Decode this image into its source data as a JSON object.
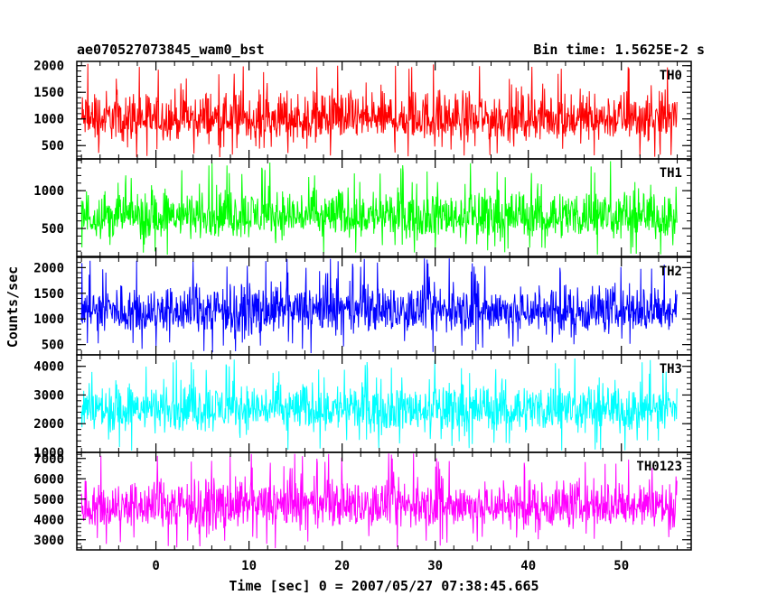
{
  "header": {
    "title": "ae070527073845_wam0_bst",
    "bin_time": "Bin time: 1.5625E-2 s"
  },
  "chart_data": {
    "type": "line",
    "xlabel": "Time [sec] 0 = 2007/05/27 07:38:45.665",
    "ylabel": "Counts/sec",
    "xlim": [
      -8.5,
      57.5
    ],
    "x_ticks": [
      "0",
      "10",
      "20",
      "30",
      "40",
      "50"
    ],
    "x_tick_values": [
      0,
      10,
      20,
      30,
      40,
      50
    ],
    "data_x_range": [
      -8,
      56
    ],
    "series": [
      {
        "name": "TH0",
        "color": "#ff0000",
        "ylim": [
          250,
          2080
        ],
        "y_ticks": [
          "500",
          "1000",
          "1500",
          "2000"
        ],
        "y_tick_values": [
          500,
          1000,
          1500,
          2000
        ],
        "baseline": 980,
        "low": 280,
        "high": 2080
      },
      {
        "name": "TH1",
        "color": "#00ff00",
        "ylim": [
          130,
          1420
        ],
        "y_ticks": [
          "500",
          "1000"
        ],
        "y_tick_values": [
          500,
          1000
        ],
        "baseline": 650,
        "low": 150,
        "high": 1400
      },
      {
        "name": "TH2",
        "color": "#0000ff",
        "ylim": [
          300,
          2200
        ],
        "y_ticks": [
          "500",
          "1000",
          "1500",
          "2000"
        ],
        "y_tick_values": [
          500,
          1000,
          1500,
          2000
        ],
        "baseline": 1150,
        "low": 320,
        "high": 2180
      },
      {
        "name": "TH3",
        "color": "#00ffff",
        "ylim": [
          1000,
          4400
        ],
        "y_ticks": [
          "1000",
          "2000",
          "3000",
          "4000"
        ],
        "y_tick_values": [
          1000,
          2000,
          3000,
          4000
        ],
        "baseline": 2500,
        "low": 1050,
        "high": 4300
      },
      {
        "name": "TH0123",
        "color": "#ff00ff",
        "ylim": [
          2500,
          7300
        ],
        "y_ticks": [
          "3000",
          "4000",
          "5000",
          "6000",
          "7000"
        ],
        "y_tick_values": [
          3000,
          4000,
          5000,
          6000,
          7000
        ],
        "baseline": 4650,
        "low": 2550,
        "high": 7250
      }
    ]
  }
}
